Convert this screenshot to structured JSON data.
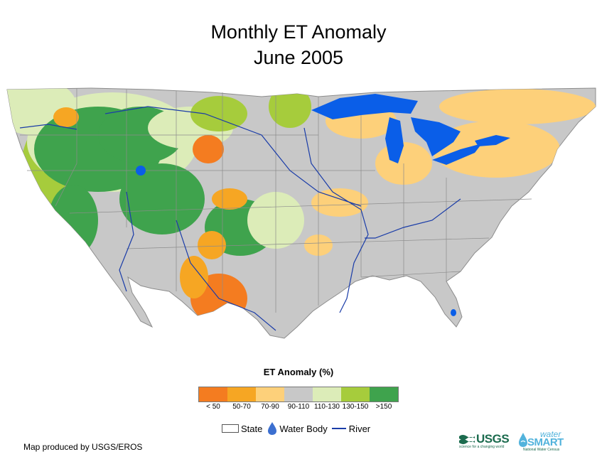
{
  "header": {
    "title_line1": "Monthly ET Anomaly",
    "title_line2": "June 2005"
  },
  "legend": {
    "title": "ET Anomaly (%)",
    "classes": [
      {
        "label": "< 50",
        "color": "#f47c20"
      },
      {
        "label": "50-70",
        "color": "#f6a623"
      },
      {
        "label": "70-90",
        "color": "#fdd07a"
      },
      {
        "label": "90-110",
        "color": "#c8c8c8"
      },
      {
        "label": "110-130",
        "color": "#dcecb8"
      },
      {
        "label": "130-150",
        "color": "#a6cc3c"
      },
      {
        "label": ">150",
        "color": "#3fa34d"
      }
    ]
  },
  "key": {
    "state_label": "State",
    "water_label": "Water Body",
    "river_label": "River"
  },
  "map_colors": {
    "water": "#0a5ee8",
    "river": "#1a3ca8",
    "state_border": "#8c8c8c",
    "land_base": "#c8c8c8"
  },
  "footer": {
    "credit": "Map produced by USGS/EROS",
    "usgs_logo": "USGS",
    "usgs_tagline": "science for a changing world",
    "watersmart_top": "water",
    "watersmart_main": "SMART",
    "watersmart_sub": "National Water Census"
  }
}
